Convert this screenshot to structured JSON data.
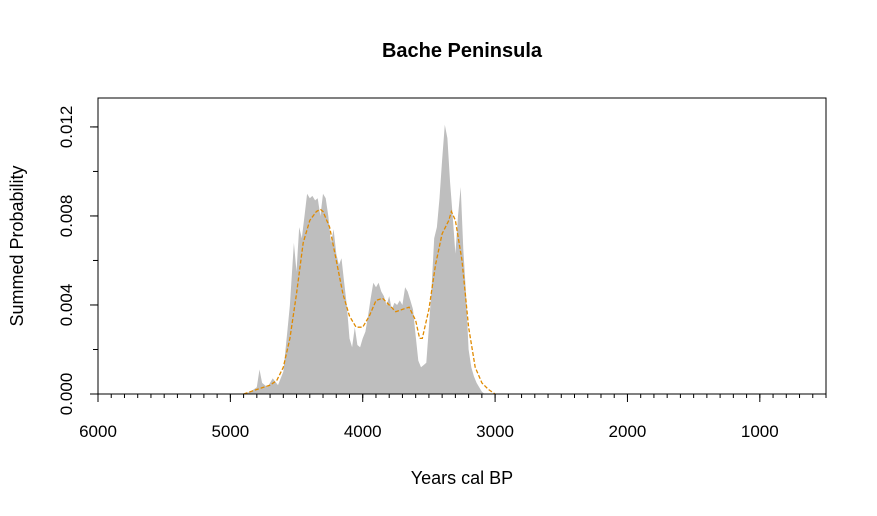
{
  "chart_data": {
    "type": "area",
    "title": "Bache Peninsula",
    "xlabel": "Years cal BP",
    "ylabel": "Summed Probability",
    "xlim": [
      6000,
      500
    ],
    "ylim": [
      0,
      0.0133
    ],
    "x_reversed": true,
    "xticks": [
      6000,
      5000,
      4000,
      3000,
      2000,
      1000
    ],
    "xtick_labels": [
      "6000",
      "5000",
      "4000",
      "3000",
      "2000",
      "1000"
    ],
    "yticks": [
      0.0,
      0.004,
      0.008,
      0.012
    ],
    "ytick_labels": [
      "0.000",
      "0.004",
      "0.008",
      "0.012"
    ],
    "grid": false,
    "fill_color": "#bebebe",
    "smooth_color": "#e08a00",
    "series": [
      {
        "style": "filled-area",
        "x": [
          4900,
          4850,
          4800,
          4780,
          4760,
          4720,
          4680,
          4640,
          4600,
          4570,
          4550,
          4520,
          4500,
          4480,
          4460,
          4440,
          4420,
          4400,
          4380,
          4360,
          4340,
          4320,
          4300,
          4280,
          4260,
          4240,
          4220,
          4200,
          4180,
          4160,
          4140,
          4120,
          4100,
          4080,
          4060,
          4040,
          4020,
          4000,
          3980,
          3960,
          3940,
          3920,
          3900,
          3880,
          3860,
          3840,
          3820,
          3800,
          3780,
          3760,
          3740,
          3720,
          3700,
          3680,
          3660,
          3640,
          3620,
          3600,
          3580,
          3560,
          3540,
          3520,
          3500,
          3480,
          3460,
          3440,
          3420,
          3400,
          3380,
          3360,
          3340,
          3320,
          3300,
          3280,
          3260,
          3240,
          3220,
          3200,
          3180,
          3160,
          3140,
          3120,
          3100,
          3080,
          3060
        ],
        "y": [
          0.0,
          0.0001,
          0.0003,
          0.0011,
          0.0005,
          0.0003,
          0.0007,
          0.0004,
          0.001,
          0.0028,
          0.004,
          0.0068,
          0.0055,
          0.0075,
          0.007,
          0.008,
          0.009,
          0.0088,
          0.0089,
          0.0087,
          0.0088,
          0.008,
          0.009,
          0.0088,
          0.008,
          0.0068,
          0.0074,
          0.0063,
          0.0058,
          0.0061,
          0.005,
          0.004,
          0.0025,
          0.0021,
          0.003,
          0.0022,
          0.0021,
          0.0025,
          0.0028,
          0.0035,
          0.0043,
          0.005,
          0.0048,
          0.005,
          0.0046,
          0.0044,
          0.004,
          0.0044,
          0.0038,
          0.0041,
          0.004,
          0.0042,
          0.004,
          0.0048,
          0.0046,
          0.0042,
          0.0038,
          0.0026,
          0.0015,
          0.0012,
          0.0013,
          0.0014,
          0.003,
          0.0048,
          0.007,
          0.0075,
          0.0088,
          0.0105,
          0.0121,
          0.0115,
          0.0095,
          0.008,
          0.0063,
          0.008,
          0.0093,
          0.0065,
          0.0045,
          0.002,
          0.0012,
          0.0008,
          0.0005,
          0.0003,
          0.0001,
          0.0,
          0.0
        ]
      },
      {
        "style": "dashed-line",
        "x": [
          4900,
          4850,
          4800,
          4750,
          4700,
          4650,
          4600,
          4550,
          4500,
          4450,
          4400,
          4350,
          4320,
          4300,
          4250,
          4200,
          4150,
          4100,
          4050,
          4000,
          3950,
          3900,
          3850,
          3800,
          3750,
          3700,
          3650,
          3600,
          3570,
          3550,
          3500,
          3450,
          3400,
          3350,
          3330,
          3300,
          3250,
          3200,
          3150,
          3100,
          3050,
          3000
        ],
        "y": [
          0.0,
          0.0001,
          0.0002,
          0.0003,
          0.0004,
          0.0006,
          0.0012,
          0.0025,
          0.0045,
          0.0068,
          0.0078,
          0.0082,
          0.0083,
          0.0082,
          0.0075,
          0.006,
          0.0045,
          0.0035,
          0.003,
          0.003,
          0.0035,
          0.0042,
          0.0043,
          0.004,
          0.0037,
          0.0038,
          0.0039,
          0.0033,
          0.0025,
          0.0025,
          0.0038,
          0.0058,
          0.0072,
          0.0078,
          0.0082,
          0.0078,
          0.006,
          0.003,
          0.0012,
          0.0005,
          0.0002,
          0.0
        ]
      }
    ]
  }
}
